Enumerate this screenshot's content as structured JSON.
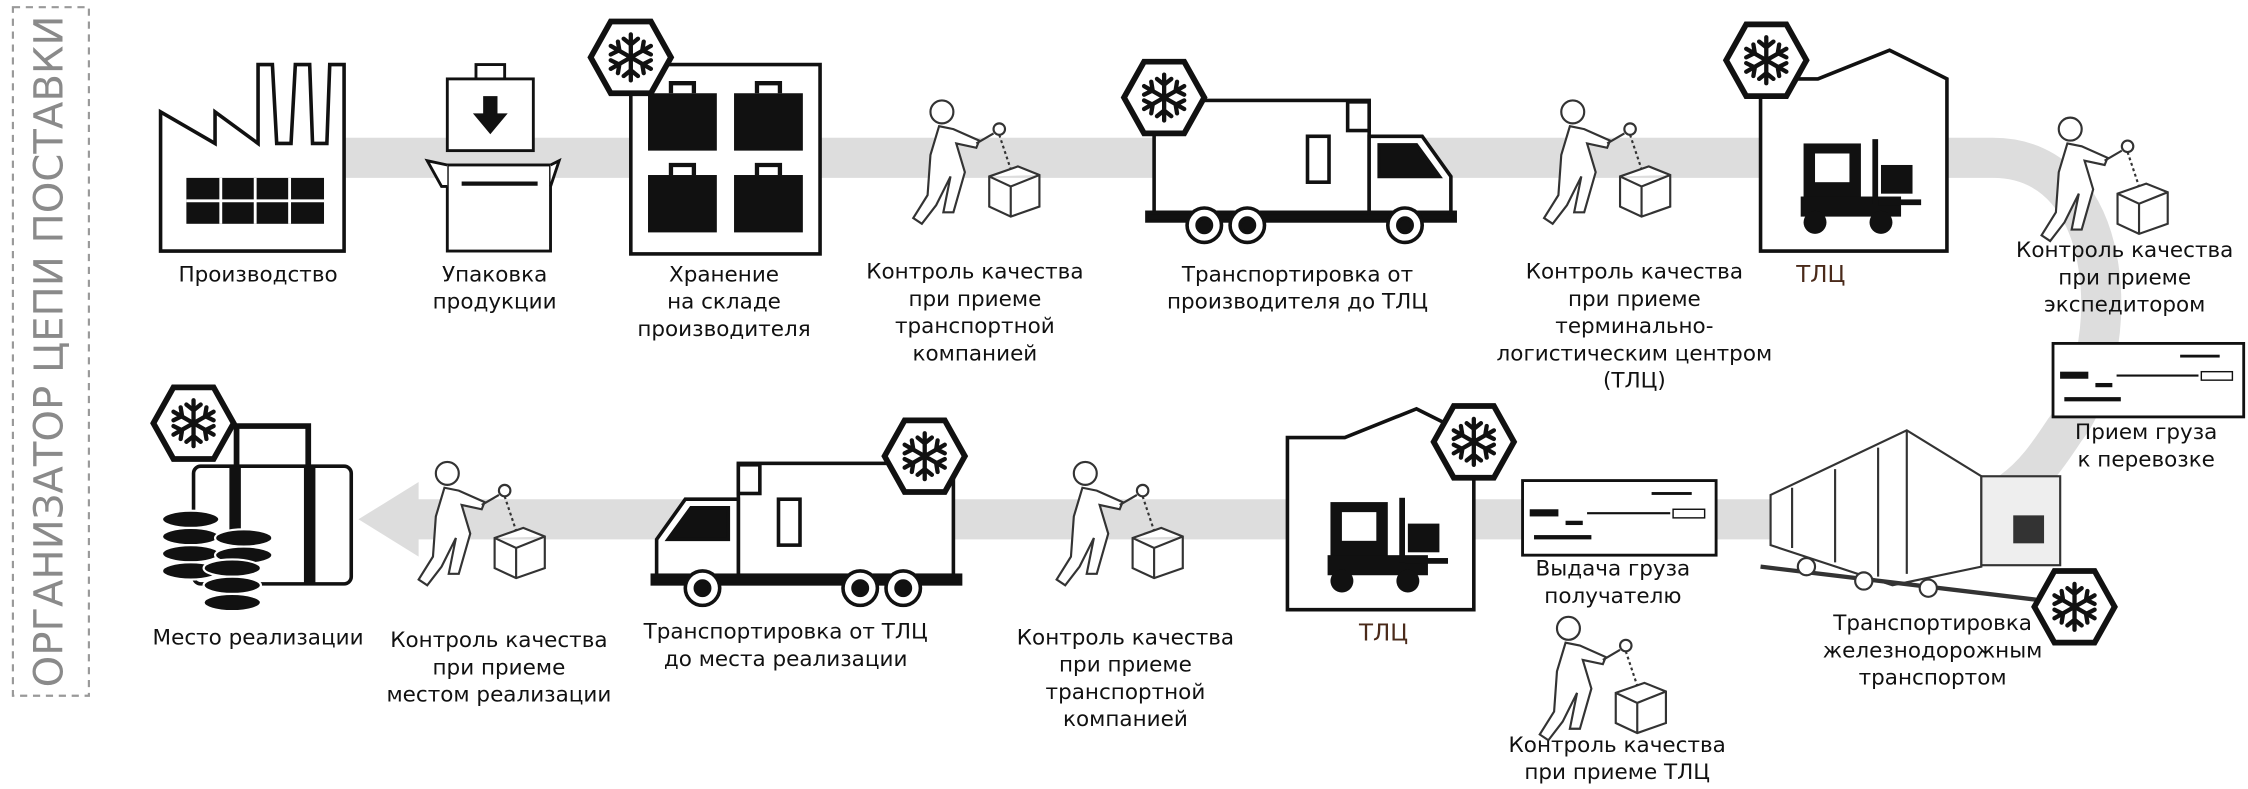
{
  "sidebar": {
    "title": "ОРГАНИЗАТОР ЦЕПИ ПОСТАВКИ"
  },
  "nodes": [
    {
      "lines": [
        "Производство"
      ]
    },
    {
      "lines": [
        "Упаковка",
        "продукции"
      ]
    },
    {
      "lines": [
        "Хранение",
        "на складе",
        "производителя"
      ]
    },
    {
      "lines": [
        "Контроль качества",
        "при приеме",
        "транспортной",
        "компанией"
      ]
    },
    {
      "lines": [
        "Транспортировка от",
        "производителя до ТЛЦ"
      ]
    },
    {
      "lines": [
        "Контроль качества",
        "при приеме",
        "терминально-",
        "логистическим центром",
        "(ТЛЦ)"
      ]
    },
    {
      "lines": [
        "ТЛЦ"
      ]
    },
    {
      "lines": [
        "Контроль качества",
        "при приеме",
        "экспедитором"
      ]
    },
    {
      "lines": [
        "Прием груза",
        "к перевозке"
      ]
    },
    {
      "lines": [
        "Транспортировка",
        "железнодорожным",
        "транспортом"
      ]
    },
    {
      "lines": [
        "Выдача груза",
        "получателю"
      ]
    },
    {
      "lines": [
        "Контроль качества",
        "при приеме ТЛЦ"
      ]
    },
    {
      "lines": [
        "ТЛЦ"
      ]
    },
    {
      "lines": [
        "Контроль качества",
        "при приеме",
        "транспортной",
        "компанией"
      ]
    },
    {
      "lines": [
        "Транспортировка от ТЛЦ",
        "до места реализации"
      ]
    },
    {
      "lines": [
        "Контроль качества",
        "при приеме",
        "местом реализации"
      ]
    },
    {
      "lines": [
        "Место реализации"
      ]
    }
  ]
}
